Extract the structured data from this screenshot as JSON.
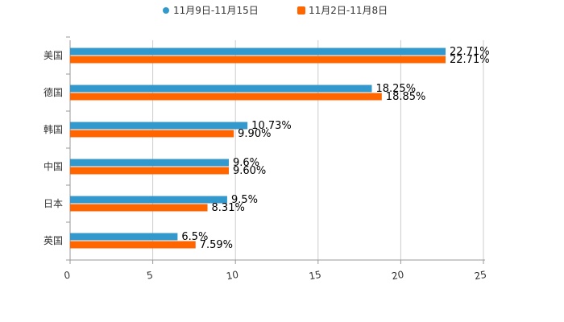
{
  "chart_data": {
    "type": "bar",
    "orientation": "horizontal",
    "title": "",
    "xlabel": "",
    "ylabel": "",
    "xlim": [
      0,
      25
    ],
    "xticks": [
      "0",
      "5",
      "10",
      "15",
      "20",
      "25"
    ],
    "grid": true,
    "legend_position": "top-center",
    "categories": [
      "美国",
      "德国",
      "韩国",
      "中国",
      "日本",
      "英国"
    ],
    "series": [
      {
        "name": "11月9日-11月15日",
        "color": "#3399cc",
        "values": [
          22.71,
          18.25,
          10.73,
          9.6,
          9.5,
          6.5
        ],
        "labels": [
          "22.71%",
          "18.25%",
          "10.73%",
          "9.6%",
          "9.5%",
          "6.5%"
        ]
      },
      {
        "name": "11月2日-11月8日",
        "color": "#ff6600",
        "values": [
          22.71,
          18.85,
          9.9,
          9.6,
          8.31,
          7.59
        ],
        "labels": [
          "22.71%",
          "18.85%",
          "9.90%",
          "9.60%",
          "8.31%",
          "7.59%"
        ]
      }
    ]
  }
}
